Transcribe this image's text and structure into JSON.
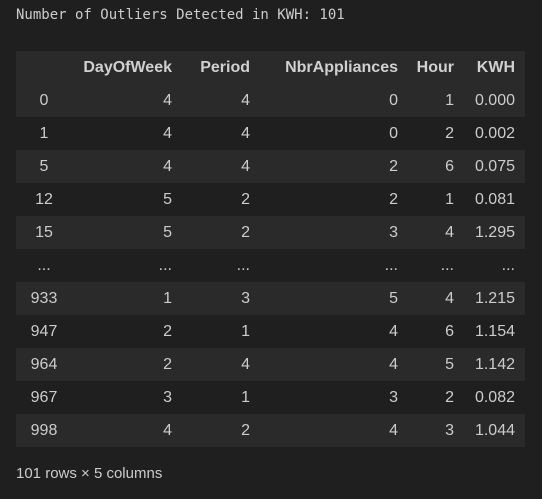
{
  "output": {
    "stdout_line": "Number of Outliers Detected in KWH: 101"
  },
  "dataframe": {
    "columns": [
      "DayOfWeek",
      "Period",
      "NbrAppliances",
      "Hour",
      "KWH"
    ],
    "rows": [
      {
        "index": "0",
        "cells": [
          "4",
          "4",
          "0",
          "1",
          "0.000"
        ]
      },
      {
        "index": "1",
        "cells": [
          "4",
          "4",
          "0",
          "2",
          "0.002"
        ]
      },
      {
        "index": "5",
        "cells": [
          "4",
          "4",
          "2",
          "6",
          "0.075"
        ]
      },
      {
        "index": "12",
        "cells": [
          "5",
          "2",
          "2",
          "1",
          "0.081"
        ]
      },
      {
        "index": "15",
        "cells": [
          "5",
          "2",
          "3",
          "4",
          "1.295"
        ]
      },
      {
        "index": "...",
        "cells": [
          "...",
          "...",
          "...",
          "...",
          "..."
        ]
      },
      {
        "index": "933",
        "cells": [
          "1",
          "3",
          "5",
          "4",
          "1.215"
        ]
      },
      {
        "index": "947",
        "cells": [
          "2",
          "1",
          "4",
          "6",
          "1.154"
        ]
      },
      {
        "index": "964",
        "cells": [
          "2",
          "4",
          "4",
          "5",
          "1.142"
        ]
      },
      {
        "index": "967",
        "cells": [
          "3",
          "1",
          "3",
          "2",
          "0.082"
        ]
      },
      {
        "index": "998",
        "cells": [
          "4",
          "2",
          "4",
          "3",
          "1.044"
        ]
      }
    ],
    "shape_text": "101 rows × 5 columns"
  },
  "colors": {
    "background": "#1f1f1f",
    "stripe": "#2a2a2a",
    "text": "#cccccc"
  }
}
